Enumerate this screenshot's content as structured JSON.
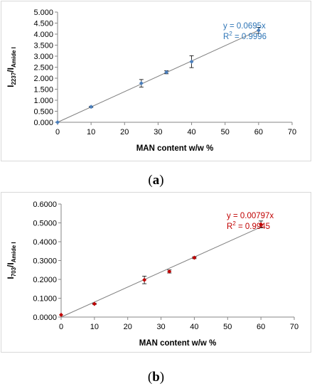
{
  "charts": [
    {
      "caption_parts": [
        "(",
        "a",
        ")"
      ],
      "chart_data": {
        "type": "scatter",
        "xlabel": "MAN content w/w %",
        "ylabel_main": "I",
        "ylabel_sub1": "2237",
        "ylabel_sep": "/I",
        "ylabel_sub2": "Amide I",
        "xlim": [
          0,
          70
        ],
        "ylim": [
          0,
          5
        ],
        "xticks": [
          0,
          10,
          20,
          30,
          40,
          50,
          60,
          70
        ],
        "xtick_labels": [
          "0",
          "10",
          "20",
          "30",
          "40",
          "50",
          "60",
          "70"
        ],
        "yticks": [
          0,
          0.5,
          1,
          1.5,
          2,
          2.5,
          3,
          3.5,
          4,
          4.5,
          5
        ],
        "ytick_labels": [
          "0.000",
          "0.500",
          "1.000",
          "1.500",
          "2.000",
          "2.500",
          "3.000",
          "3.500",
          "4.000",
          "4.500",
          "5.000"
        ],
        "grid": false,
        "legend": "none",
        "series": [
          {
            "x": [
              0,
              10,
              25,
              32.5,
              40,
              60
            ],
            "y": [
              0,
              0.7,
              1.77,
              2.27,
              2.75,
              4.17
            ],
            "error": [
              0,
              0.03,
              0.17,
              0.07,
              0.27,
              0.14
            ],
            "color": "#4a7ebb",
            "marker": "diamond"
          }
        ],
        "trendline": {
          "slope": 0.0695,
          "x_range": [
            0,
            60
          ],
          "equation": "y = 0.0695x",
          "r2_label": "R",
          "r2_value": " = 0.9996",
          "color": "#808080",
          "label_color": "#2e75b6"
        }
      }
    },
    {
      "caption_parts": [
        "(",
        "b",
        ")"
      ],
      "chart_data": {
        "type": "scatter",
        "xlabel": "MAN content w/w %",
        "ylabel_main": "I",
        "ylabel_sub1": "703",
        "ylabel_sep": "/I",
        "ylabel_sub2": "Amide I",
        "xlim": [
          0,
          70
        ],
        "ylim": [
          0,
          0.6
        ],
        "xticks": [
          0,
          10,
          20,
          30,
          40,
          50,
          60,
          70
        ],
        "xtick_labels": [
          "0",
          "10",
          "20",
          "30",
          "40",
          "50",
          "60",
          "70"
        ],
        "yticks": [
          0,
          0.1,
          0.2,
          0.3,
          0.4,
          0.5,
          0.6
        ],
        "ytick_labels": [
          "0.0000",
          "0.1000",
          "0.2000",
          "0.3000",
          "0.4000",
          "0.5000",
          "0.6000"
        ],
        "grid": false,
        "legend": "none",
        "series": [
          {
            "x": [
              0,
              10,
              25,
              32.5,
              40,
              60
            ],
            "y": [
              0.012,
              0.07,
              0.197,
              0.242,
              0.315,
              0.492
            ],
            "error": [
              0,
              0.003,
              0.02,
              0.008,
              0.005,
              0.018
            ],
            "color": "#c00000",
            "marker": "diamond"
          }
        ],
        "trendline": {
          "slope": 0.00797,
          "x_range": [
            0,
            60
          ],
          "equation": "y = 0.00797x",
          "r2_label": "R",
          "r2_value": " = 0.9945",
          "color": "#808080",
          "label_color": "#c00000"
        }
      }
    }
  ]
}
